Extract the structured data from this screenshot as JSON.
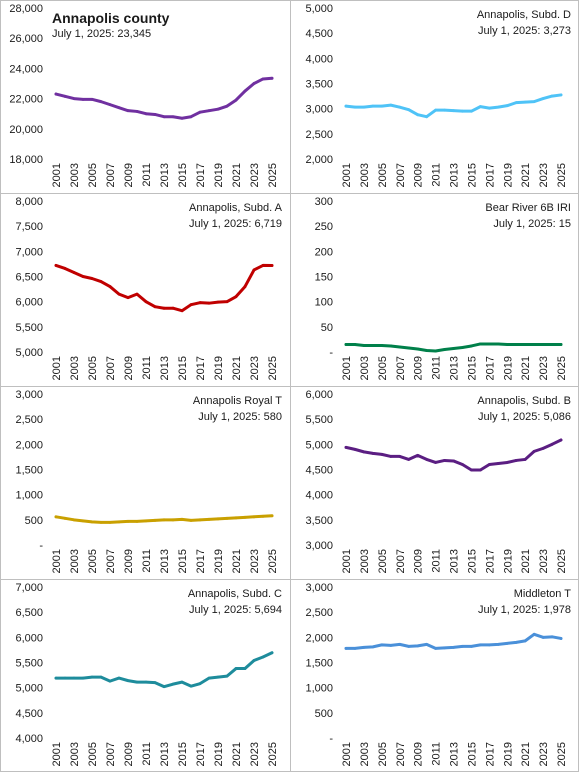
{
  "chart_data": [
    {
      "type": "line",
      "title": "Annapolis county",
      "subtitle": "July 1, 2025: 23,345",
      "title_bold": true,
      "color": "#7030a0",
      "ylim": [
        18000,
        28000
      ],
      "yticks": [
        "18,000",
        "20,000",
        "22,000",
        "24,000",
        "26,000",
        "28,000"
      ],
      "yticks_values": [
        18000,
        20000,
        22000,
        24000,
        26000,
        28000
      ],
      "x": [
        2001,
        2002,
        2003,
        2004,
        2005,
        2006,
        2007,
        2008,
        2009,
        2010,
        2011,
        2012,
        2013,
        2014,
        2015,
        2016,
        2017,
        2018,
        2019,
        2020,
        2021,
        2022,
        2023,
        2024,
        2025
      ],
      "values": [
        22300,
        22150,
        22000,
        21950,
        21950,
        21800,
        21600,
        21400,
        21200,
        21150,
        21000,
        20950,
        20800,
        20800,
        20700,
        20800,
        21100,
        21200,
        21300,
        21500,
        21900,
        22500,
        23000,
        23300,
        23345
      ]
    },
    {
      "type": "line",
      "title": "Annapolis, Subd. D",
      "subtitle": "July 1, 2025: 3,273",
      "title_bold": false,
      "color": "#4fc3f7",
      "ylim": [
        2000,
        5000
      ],
      "yticks": [
        "2,000",
        "2,500",
        "3,000",
        "3,500",
        "4,000",
        "4,500",
        "5,000"
      ],
      "yticks_values": [
        2000,
        2500,
        3000,
        3500,
        4000,
        4500,
        5000
      ],
      "x": [
        2001,
        2002,
        2003,
        2004,
        2005,
        2006,
        2007,
        2008,
        2009,
        2010,
        2011,
        2012,
        2013,
        2014,
        2015,
        2016,
        2017,
        2018,
        2019,
        2020,
        2021,
        2022,
        2023,
        2024,
        2025
      ],
      "values": [
        3050,
        3030,
        3030,
        3050,
        3050,
        3070,
        3030,
        2980,
        2880,
        2840,
        2970,
        2970,
        2960,
        2950,
        2950,
        3040,
        3010,
        3030,
        3060,
        3120,
        3130,
        3140,
        3200,
        3250,
        3273
      ]
    },
    {
      "type": "line",
      "title": "Annapolis, Subd. A",
      "subtitle": "July 1, 2025: 6,719",
      "title_bold": false,
      "color": "#c00000",
      "ylim": [
        5000,
        8000
      ],
      "yticks": [
        "5,000",
        "5,500",
        "6,000",
        "6,500",
        "7,000",
        "7,500",
        "8,000"
      ],
      "yticks_values": [
        5000,
        5500,
        6000,
        6500,
        7000,
        7500,
        8000
      ],
      "x": [
        2001,
        2002,
        2003,
        2004,
        2005,
        2006,
        2007,
        2008,
        2009,
        2010,
        2011,
        2012,
        2013,
        2014,
        2015,
        2016,
        2017,
        2018,
        2019,
        2020,
        2021,
        2022,
        2023,
        2024,
        2025
      ],
      "values": [
        6720,
        6660,
        6580,
        6500,
        6460,
        6400,
        6300,
        6150,
        6080,
        6150,
        6000,
        5900,
        5870,
        5870,
        5820,
        5940,
        5980,
        5970,
        5990,
        6000,
        6100,
        6300,
        6630,
        6720,
        6719
      ]
    },
    {
      "type": "line",
      "title": "Bear River 6B  IRI",
      "subtitle": "July 1, 2025: 15",
      "title_bold": false,
      "color": "#00804a",
      "ylim": [
        0,
        300
      ],
      "yticks": [
        "-",
        "50",
        "100",
        "150",
        "200",
        "250",
        "300"
      ],
      "yticks_values": [
        0,
        50,
        100,
        150,
        200,
        250,
        300
      ],
      "x": [
        2001,
        2002,
        2003,
        2004,
        2005,
        2006,
        2007,
        2008,
        2009,
        2010,
        2011,
        2012,
        2013,
        2014,
        2015,
        2016,
        2017,
        2018,
        2019,
        2020,
        2021,
        2022,
        2023,
        2024,
        2025
      ],
      "values": [
        15,
        15,
        13,
        13,
        13,
        12,
        10,
        8,
        6,
        3,
        2,
        5,
        7,
        9,
        12,
        16,
        16,
        16,
        15,
        15,
        15,
        15,
        15,
        15,
        15
      ]
    },
    {
      "type": "line",
      "title": "Annapolis Royal  T",
      "subtitle": "July 1, 2025: 580",
      "title_bold": false,
      "color": "#c9a000",
      "ylim": [
        0,
        3000
      ],
      "yticks": [
        "-",
        "500",
        "1,000",
        "1,500",
        "2,000",
        "2,500",
        "3,000"
      ],
      "yticks_values": [
        0,
        500,
        1000,
        1500,
        2000,
        2500,
        3000
      ],
      "x": [
        2001,
        2002,
        2003,
        2004,
        2005,
        2006,
        2007,
        2008,
        2009,
        2010,
        2011,
        2012,
        2013,
        2014,
        2015,
        2016,
        2017,
        2018,
        2019,
        2020,
        2021,
        2022,
        2023,
        2024,
        2025
      ],
      "values": [
        560,
        530,
        500,
        480,
        460,
        450,
        450,
        460,
        470,
        470,
        480,
        490,
        500,
        500,
        510,
        490,
        500,
        510,
        520,
        530,
        540,
        550,
        560,
        570,
        580
      ]
    },
    {
      "type": "line",
      "title": "Annapolis, Subd. B",
      "subtitle": "July 1, 2025: 5,086",
      "title_bold": false,
      "color": "#5b1e82",
      "ylim": [
        3000,
        6000
      ],
      "yticks": [
        "3,000",
        "3,500",
        "4,000",
        "4,500",
        "5,000",
        "5,500",
        "6,000"
      ],
      "yticks_values": [
        3000,
        3500,
        4000,
        4500,
        5000,
        5500,
        6000
      ],
      "x": [
        2001,
        2002,
        2003,
        2004,
        2005,
        2006,
        2007,
        2008,
        2009,
        2010,
        2011,
        2012,
        2013,
        2014,
        2015,
        2016,
        2017,
        2018,
        2019,
        2020,
        2021,
        2022,
        2023,
        2024,
        2025
      ],
      "values": [
        4940,
        4900,
        4850,
        4820,
        4800,
        4760,
        4760,
        4700,
        4780,
        4700,
        4640,
        4680,
        4670,
        4600,
        4490,
        4490,
        4600,
        4620,
        4640,
        4680,
        4700,
        4860,
        4920,
        5000,
        5086
      ]
    },
    {
      "type": "line",
      "title": "Annapolis, Subd. C",
      "subtitle": "July 1, 2025: 5,694",
      "title_bold": false,
      "color": "#1e8c9c",
      "ylim": [
        4000,
        7000
      ],
      "yticks": [
        "4,000",
        "4,500",
        "5,000",
        "5,500",
        "6,000",
        "6,500",
        "7,000"
      ],
      "yticks_values": [
        4000,
        4500,
        5000,
        5500,
        6000,
        6500,
        7000
      ],
      "x": [
        2001,
        2002,
        2003,
        2004,
        2005,
        2006,
        2007,
        2008,
        2009,
        2010,
        2011,
        2012,
        2013,
        2014,
        2015,
        2016,
        2017,
        2018,
        2019,
        2020,
        2021,
        2022,
        2023,
        2024,
        2025
      ],
      "values": [
        5190,
        5190,
        5190,
        5190,
        5210,
        5210,
        5130,
        5190,
        5140,
        5110,
        5110,
        5100,
        5020,
        5070,
        5110,
        5030,
        5080,
        5190,
        5210,
        5230,
        5380,
        5380,
        5540,
        5610,
        5694
      ]
    },
    {
      "type": "line",
      "title": "Middleton  T",
      "subtitle": "July 1, 2025: 1,978",
      "title_bold": false,
      "color": "#4a90d9",
      "ylim": [
        0,
        3000
      ],
      "yticks": [
        "-",
        "500",
        "1,000",
        "1,500",
        "2,000",
        "2,500",
        "3,000"
      ],
      "yticks_values": [
        0,
        500,
        1000,
        1500,
        2000,
        2500,
        3000
      ],
      "x": [
        2001,
        2002,
        2003,
        2004,
        2005,
        2006,
        2007,
        2008,
        2009,
        2010,
        2011,
        2012,
        2013,
        2014,
        2015,
        2016,
        2017,
        2018,
        2019,
        2020,
        2021,
        2022,
        2023,
        2024,
        2025
      ],
      "values": [
        1780,
        1780,
        1800,
        1810,
        1850,
        1840,
        1860,
        1820,
        1830,
        1860,
        1780,
        1790,
        1800,
        1820,
        1820,
        1850,
        1850,
        1860,
        1880,
        1900,
        1930,
        2060,
        2000,
        2010,
        1978
      ]
    }
  ],
  "x_tick_labels": [
    "2001",
    "2003",
    "2005",
    "2007",
    "2009",
    "2011",
    "2013",
    "2015",
    "2017",
    "2019",
    "2021",
    "2023",
    "2025"
  ]
}
